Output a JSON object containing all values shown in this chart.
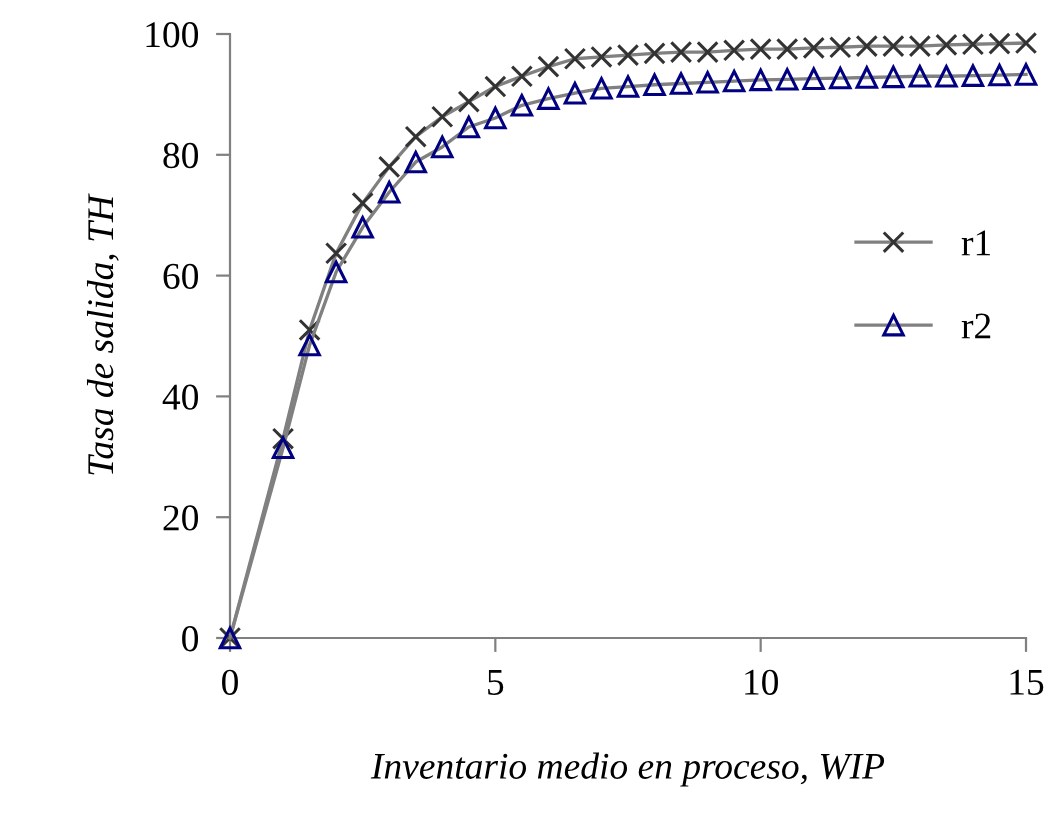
{
  "chart_data": {
    "type": "line",
    "xlabel": "Inventario medio en proceso, WIP",
    "ylabel": "Tasa de salida, TH",
    "x": [
      0,
      1,
      1.5,
      2,
      2.5,
      3,
      3.5,
      4,
      4.5,
      5,
      5.5,
      6,
      6.5,
      7,
      7.5,
      8,
      8.5,
      9,
      9.5,
      10,
      10.5,
      11,
      11.5,
      12,
      12.5,
      13,
      13.5,
      14,
      14.5,
      15
    ],
    "series": [
      {
        "name": "r1",
        "color": "#333333",
        "marker": "cross",
        "values": [
          0,
          33,
          51,
          63.7,
          72,
          78,
          83,
          86.3,
          88.8,
          91.3,
          93,
          94.6,
          95.9,
          96.2,
          96.5,
          96.8,
          97,
          97,
          97.3,
          97.5,
          97.5,
          97.7,
          97.8,
          98,
          98,
          98,
          98.2,
          98.3,
          98.4,
          98.5
        ]
      },
      {
        "name": "r2",
        "color": "#000080",
        "marker": "triangle",
        "values": [
          0,
          31.5,
          48.5,
          60.6,
          68,
          73.8,
          78.8,
          81.3,
          84.6,
          86.1,
          88.2,
          89.3,
          90.2,
          91,
          91.3,
          91.6,
          91.8,
          92,
          92.2,
          92.4,
          92.5,
          92.6,
          92.7,
          92.8,
          92.9,
          93,
          93,
          93.1,
          93.2,
          93.3
        ]
      }
    ],
    "xlim": [
      0,
      15
    ],
    "xticks": [
      0,
      5,
      10,
      15
    ],
    "ylim": [
      0,
      100
    ],
    "yticks": [
      0,
      20,
      40,
      60,
      80,
      100
    ],
    "grid": false,
    "legend": "right",
    "line_style": "solid"
  }
}
